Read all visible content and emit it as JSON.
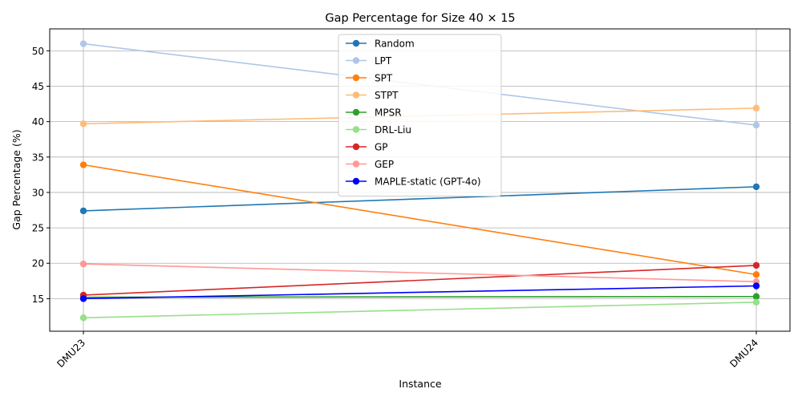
{
  "chart_data": {
    "type": "line",
    "title": "Gap Percentage for Size 40 × 15",
    "xlabel": "Instance",
    "ylabel": "Gap Percentage (%)",
    "categories": [
      "DMU23",
      "DMU24"
    ],
    "ylim": [
      10.4,
      53.1
    ],
    "yticks": [
      15,
      20,
      25,
      30,
      35,
      40,
      45,
      50
    ],
    "grid": true,
    "legend_position": "top-center",
    "series": [
      {
        "name": "Random",
        "color": "#1f77b4",
        "values": [
          27.4,
          30.8
        ]
      },
      {
        "name": "LPT",
        "color": "#aec7e8",
        "values": [
          51.0,
          39.5
        ]
      },
      {
        "name": "SPT",
        "color": "#ff7f0e",
        "values": [
          33.9,
          18.4
        ]
      },
      {
        "name": "STPT",
        "color": "#ffbb78",
        "values": [
          39.7,
          41.9
        ]
      },
      {
        "name": "MPSR",
        "color": "#2ca02c",
        "values": [
          15.2,
          15.3
        ]
      },
      {
        "name": "DRL-Liu",
        "color": "#98df8a",
        "values": [
          12.3,
          14.5
        ]
      },
      {
        "name": "GP",
        "color": "#d62728",
        "values": [
          15.5,
          19.7
        ]
      },
      {
        "name": "GEP",
        "color": "#ff9896",
        "values": [
          19.9,
          17.4
        ]
      },
      {
        "name": "MAPLE-static (GPT-4o)",
        "color": "#0000ff",
        "values": [
          15.0,
          16.8
        ]
      }
    ]
  }
}
